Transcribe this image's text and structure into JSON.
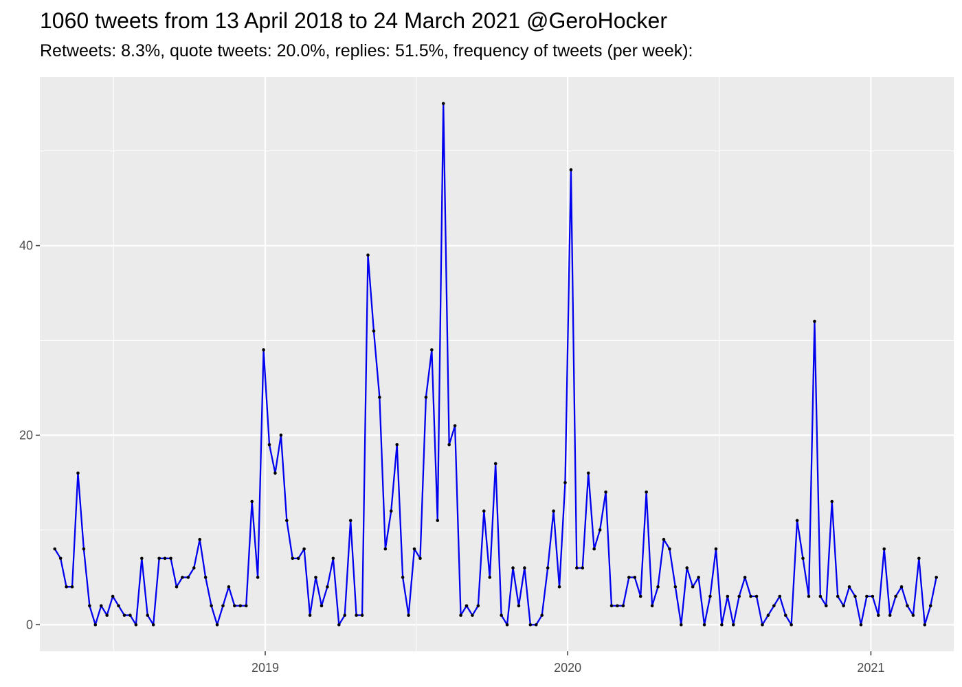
{
  "title": "1060 tweets from 13 April 2018 to 24 March 2021 @GeroHocker",
  "subtitle": "Retweets: 8.3%, quote tweets: 20.0%, replies: 51.5%, frequency of tweets (per week):",
  "colors": {
    "panel": "#ebebeb",
    "grid": "#ffffff",
    "line": "#0000ee",
    "point": "#000000"
  },
  "chart_data": {
    "type": "line",
    "title": "1060 tweets from 13 April 2018 to 24 March 2021 @GeroHocker",
    "subtitle": "Retweets: 8.3%, quote tweets: 20.0%, replies: 51.5%, frequency of tweets (per week):",
    "xlabel": "",
    "ylabel": "",
    "x_start": "2018-04-22",
    "x_step_days": 7,
    "xlim": [
      "2018-04-04",
      "2021-04-11"
    ],
    "ylim": [
      -2.8,
      57.8
    ],
    "x_ticks": [
      {
        "label": "2019",
        "date": "2019-01-01"
      },
      {
        "label": "2020",
        "date": "2020-01-01"
      },
      {
        "label": "2021",
        "date": "2021-01-01"
      }
    ],
    "x_minor_ticks": [
      "2018-07-02",
      "2019-07-02",
      "2020-07-02"
    ],
    "y_ticks": [
      0,
      20,
      40
    ],
    "y_minor_ticks": [
      10,
      30,
      50
    ],
    "grid": true,
    "series": [
      {
        "values": [
          8,
          7,
          4,
          4,
          16,
          8,
          2,
          0,
          2,
          1,
          3,
          2,
          1,
          1,
          0,
          7,
          1,
          0,
          7,
          7,
          7,
          4,
          5,
          5,
          6,
          9,
          5,
          2,
          0,
          2,
          4,
          2,
          2,
          2,
          13,
          5,
          29,
          19,
          16,
          20,
          11,
          7,
          7,
          8,
          1,
          5,
          2,
          4,
          7,
          0,
          1,
          11,
          1,
          1,
          39,
          31,
          24,
          8,
          12,
          19,
          5,
          1,
          8,
          7,
          24,
          29,
          11,
          55,
          19,
          21,
          1,
          2,
          1,
          2,
          12,
          5,
          17,
          1,
          0,
          6,
          2,
          6,
          0,
          0,
          1,
          6,
          12,
          4,
          15,
          48,
          6,
          6,
          16,
          8,
          10,
          14,
          2,
          2,
          2,
          5,
          5,
          3,
          14,
          2,
          4,
          9,
          8,
          4,
          0,
          6,
          4,
          5,
          0,
          3,
          8,
          0,
          3,
          0,
          3,
          5,
          3,
          3,
          0,
          1,
          2,
          3,
          1,
          0,
          11,
          7,
          3,
          32,
          3,
          2,
          13,
          3,
          2,
          4,
          3,
          0,
          3,
          3,
          1,
          8,
          1,
          3,
          4,
          2,
          1,
          7,
          0,
          2,
          5
        ]
      }
    ]
  }
}
